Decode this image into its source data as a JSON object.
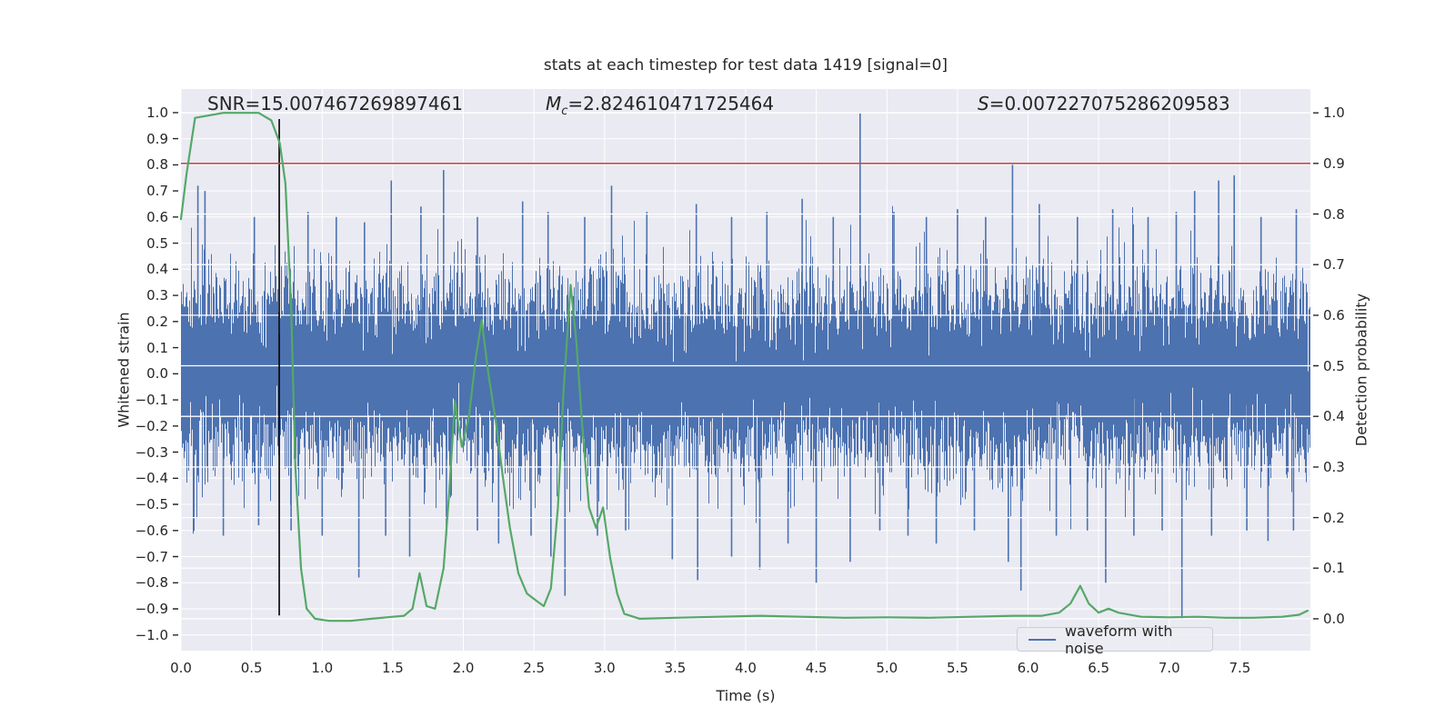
{
  "chart_data": {
    "type": "line",
    "title": "stats at each timestep for test data 1419 [signal=0]",
    "xlabel": "Time (s)",
    "ylabel_left": "Whitened strain",
    "ylabel_right": "Detection probability",
    "annotations": {
      "snr": {
        "text": "SNR=15.007467269897461"
      },
      "mc": {
        "symbol": "M",
        "sub": "c",
        "rest": "=2.824610471725464"
      },
      "s": {
        "symbol": "S",
        "rest": "=0.007227075286209583"
      }
    },
    "legend": {
      "items": [
        {
          "label": "waveform with noise",
          "color": "#4c72b0"
        }
      ],
      "position": "lower right inset"
    },
    "axes": {
      "x": {
        "lim": [
          0,
          8
        ],
        "ticks_step": 0.5,
        "tick_min": 0.0,
        "tick_max": 7.5
      },
      "left": {
        "lim": [
          -1.06,
          1.09
        ],
        "ticks_step": 0.1,
        "tick_min": -1.0,
        "tick_max": 1.0
      },
      "right": {
        "lim": [
          -0.063,
          1.047
        ],
        "ticks_step": 0.1,
        "tick_min": 0.0,
        "tick_max": 1.0
      }
    },
    "grid": {
      "on": true,
      "color": "#ffffff",
      "background": "#eaeaf2"
    },
    "colors": {
      "noise": "#4c72b0",
      "probability": "#55a868",
      "threshold": "#c44e52",
      "event_marker": "#000000",
      "text": "#262626"
    },
    "threshold_line": {
      "axis": "right",
      "value": 0.9
    },
    "event_vline": {
      "time": 0.696,
      "from": -0.925,
      "to": 0.975,
      "axis": "left"
    },
    "probability_curve": {
      "axis": "right",
      "points": [
        [
          0.0,
          0.79
        ],
        [
          0.04,
          0.88
        ],
        [
          0.1,
          0.99
        ],
        [
          0.3,
          1.0
        ],
        [
          0.55,
          1.0
        ],
        [
          0.64,
          0.985
        ],
        [
          0.7,
          0.94
        ],
        [
          0.74,
          0.86
        ],
        [
          0.78,
          0.62
        ],
        [
          0.81,
          0.3
        ],
        [
          0.85,
          0.1
        ],
        [
          0.89,
          0.02
        ],
        [
          0.95,
          0.0
        ],
        [
          1.05,
          -0.004
        ],
        [
          1.2,
          -0.004
        ],
        [
          1.35,
          0.0
        ],
        [
          1.5,
          0.004
        ],
        [
          1.58,
          0.006
        ],
        [
          1.64,
          0.02
        ],
        [
          1.69,
          0.09
        ],
        [
          1.74,
          0.025
        ],
        [
          1.8,
          0.02
        ],
        [
          1.86,
          0.1
        ],
        [
          1.9,
          0.25
        ],
        [
          1.94,
          0.43
        ],
        [
          1.99,
          0.34
        ],
        [
          2.04,
          0.4
        ],
        [
          2.09,
          0.52
        ],
        [
          2.13,
          0.59
        ],
        [
          2.18,
          0.48
        ],
        [
          2.23,
          0.39
        ],
        [
          2.28,
          0.28
        ],
        [
          2.33,
          0.18
        ],
        [
          2.39,
          0.09
        ],
        [
          2.45,
          0.05
        ],
        [
          2.52,
          0.035
        ],
        [
          2.57,
          0.025
        ],
        [
          2.62,
          0.06
        ],
        [
          2.67,
          0.22
        ],
        [
          2.71,
          0.45
        ],
        [
          2.76,
          0.66
        ],
        [
          2.8,
          0.55
        ],
        [
          2.84,
          0.39
        ],
        [
          2.89,
          0.22
        ],
        [
          2.94,
          0.18
        ],
        [
          2.99,
          0.22
        ],
        [
          3.04,
          0.12
        ],
        [
          3.09,
          0.05
        ],
        [
          3.14,
          0.01
        ],
        [
          3.25,
          0.0
        ],
        [
          3.5,
          0.002
        ],
        [
          3.8,
          0.004
        ],
        [
          4.1,
          0.006
        ],
        [
          4.4,
          0.004
        ],
        [
          4.7,
          0.002
        ],
        [
          5.0,
          0.003
        ],
        [
          5.3,
          0.002
        ],
        [
          5.6,
          0.004
        ],
        [
          5.9,
          0.006
        ],
        [
          6.1,
          0.006
        ],
        [
          6.22,
          0.012
        ],
        [
          6.3,
          0.03
        ],
        [
          6.37,
          0.065
        ],
        [
          6.43,
          0.03
        ],
        [
          6.5,
          0.012
        ],
        [
          6.57,
          0.02
        ],
        [
          6.64,
          0.012
        ],
        [
          6.8,
          0.004
        ],
        [
          7.0,
          0.003
        ],
        [
          7.2,
          0.004
        ],
        [
          7.4,
          0.002
        ],
        [
          7.6,
          0.002
        ],
        [
          7.8,
          0.004
        ],
        [
          7.92,
          0.008
        ],
        [
          7.98,
          0.016
        ]
      ]
    },
    "noise_waveform": {
      "axis": "left",
      "description": "dense zero-mean gaussian noise band",
      "sigma": 0.17,
      "samples_per_column": 13,
      "seed": 1419,
      "clamp": 0.72,
      "notable_up_spikes": [
        [
          0.12,
          0.72
        ],
        [
          0.17,
          0.7
        ],
        [
          0.52,
          0.6
        ],
        [
          0.9,
          0.62
        ],
        [
          1.1,
          0.6
        ],
        [
          1.3,
          0.58
        ],
        [
          1.49,
          0.74
        ],
        [
          1.7,
          0.64
        ],
        [
          1.86,
          0.78
        ],
        [
          2.1,
          0.6
        ],
        [
          2.42,
          0.66
        ],
        [
          2.6,
          0.62
        ],
        [
          2.86,
          0.6
        ],
        [
          3.05,
          0.72
        ],
        [
          3.3,
          0.62
        ],
        [
          3.65,
          0.65
        ],
        [
          3.9,
          0.6
        ],
        [
          4.15,
          0.62
        ],
        [
          4.4,
          0.67
        ],
        [
          4.62,
          0.6
        ],
        [
          4.81,
          1.0
        ],
        [
          5.05,
          0.62
        ],
        [
          5.28,
          0.6
        ],
        [
          5.5,
          0.63
        ],
        [
          5.7,
          0.6
        ],
        [
          5.89,
          0.8
        ],
        [
          6.08,
          0.65
        ],
        [
          6.35,
          0.6
        ],
        [
          6.6,
          0.63
        ],
        [
          6.85,
          0.6
        ],
        [
          7.05,
          0.62
        ],
        [
          7.18,
          0.7
        ],
        [
          7.35,
          0.74
        ],
        [
          7.46,
          0.76
        ],
        [
          7.65,
          0.6
        ],
        [
          7.9,
          0.63
        ]
      ],
      "notable_down_spikes": [
        [
          0.3,
          -0.62
        ],
        [
          0.55,
          -0.58
        ],
        [
          0.78,
          -0.6
        ],
        [
          1.0,
          -0.62
        ],
        [
          1.26,
          -0.78
        ],
        [
          1.45,
          -0.62
        ],
        [
          1.62,
          -0.7
        ],
        [
          1.88,
          -0.62
        ],
        [
          2.1,
          -0.6
        ],
        [
          2.25,
          -0.65
        ],
        [
          2.48,
          -0.62
        ],
        [
          2.62,
          -0.7
        ],
        [
          2.72,
          -0.85
        ],
        [
          2.95,
          -0.62
        ],
        [
          3.15,
          -0.6
        ],
        [
          3.48,
          -0.71
        ],
        [
          3.66,
          -0.79
        ],
        [
          3.9,
          -0.7
        ],
        [
          4.1,
          -0.75
        ],
        [
          4.3,
          -0.65
        ],
        [
          4.5,
          -0.8
        ],
        [
          4.74,
          -0.72
        ],
        [
          4.95,
          -0.6
        ],
        [
          5.15,
          -0.62
        ],
        [
          5.35,
          -0.65
        ],
        [
          5.62,
          -0.6
        ],
        [
          5.86,
          -0.72
        ],
        [
          5.95,
          -0.83
        ],
        [
          6.2,
          -0.62
        ],
        [
          6.42,
          -0.6
        ],
        [
          6.55,
          -0.8
        ],
        [
          6.75,
          -0.62
        ],
        [
          6.95,
          -0.6
        ],
        [
          7.09,
          -0.94
        ],
        [
          7.3,
          -0.62
        ],
        [
          7.55,
          -0.6
        ],
        [
          7.7,
          -0.64
        ],
        [
          7.88,
          -0.6
        ]
      ]
    }
  }
}
